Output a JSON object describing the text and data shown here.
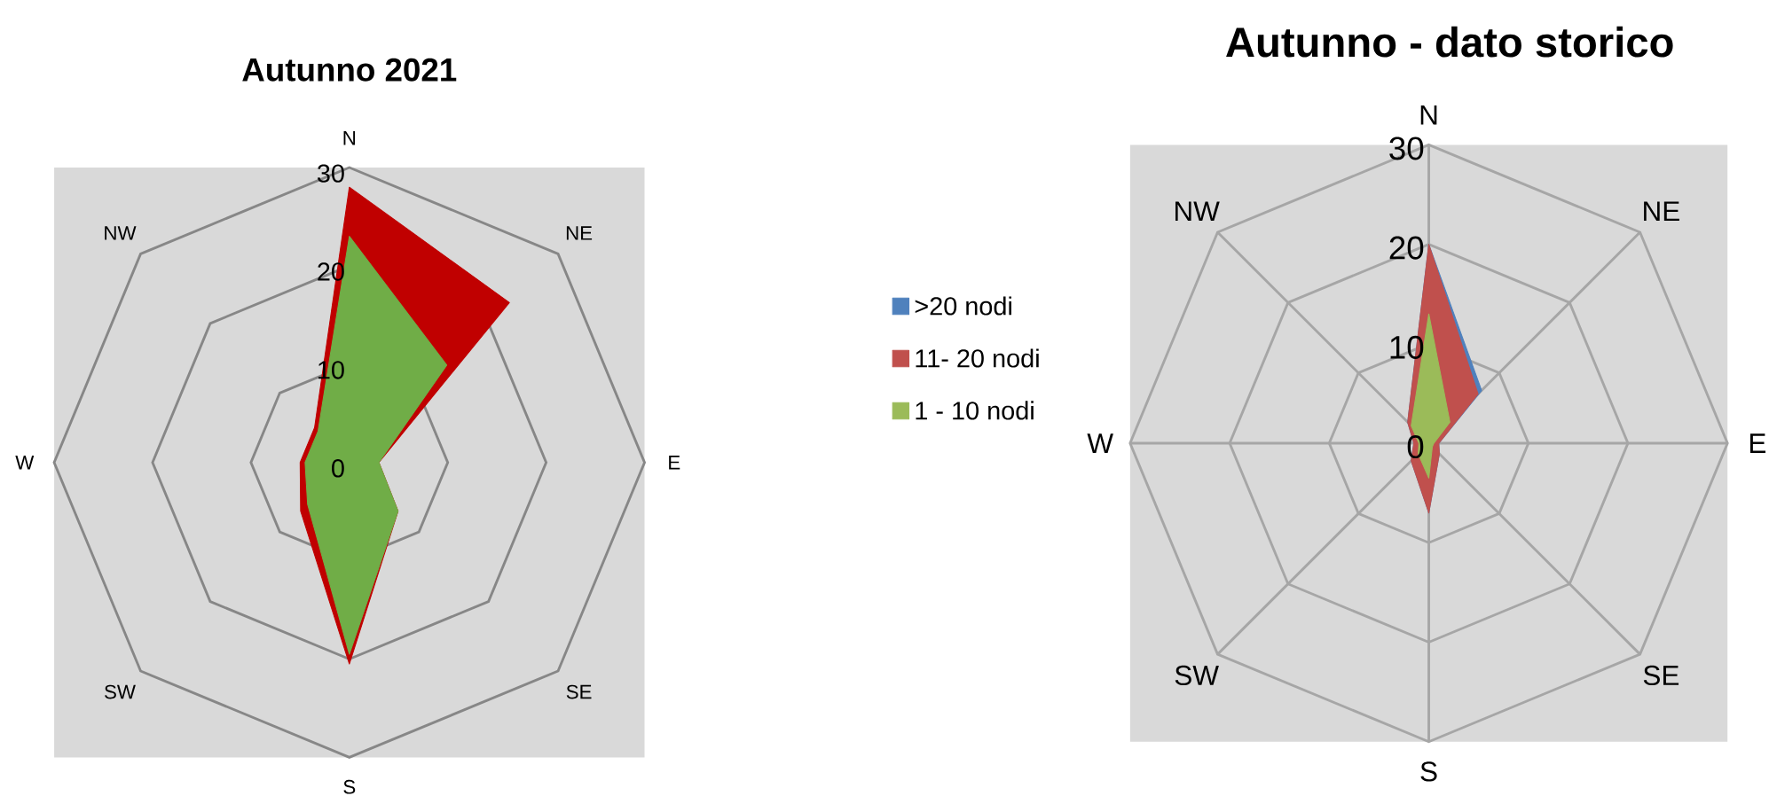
{
  "chart_data": [
    {
      "type": "radar",
      "title": "Autunno 2021",
      "categories": [
        "N",
        "NE",
        "E",
        "SE",
        "S",
        "SW",
        "W",
        "NW"
      ],
      "ylim": [
        0,
        30
      ],
      "yticks": [
        0,
        10,
        20,
        30
      ],
      "grid": "y",
      "series": [
        {
          "color": "#c00000",
          "values": [
            28,
            23,
            3,
            7,
            20.5,
            7,
            5,
            5
          ]
        },
        {
          "color": "#70ad47",
          "values": [
            23,
            14,
            3,
            7,
            19.5,
            6,
            4.5,
            4.5
          ]
        }
      ]
    },
    {
      "type": "radar",
      "title": "Autunno - dato storico",
      "categories": [
        "N",
        "NE",
        "E",
        "SE",
        "S",
        "SW",
        "W",
        "NW"
      ],
      "ylim": [
        0,
        30
      ],
      "yticks": [
        0,
        10,
        20,
        30
      ],
      "grid": true,
      "legend": "left",
      "series": [
        {
          "name": ">20 nodi",
          "color": "#4f81bd",
          "values": [
            20,
            7.5,
            1,
            1.5,
            7,
            2.5,
            1.5,
            3
          ]
        },
        {
          "name": "11- 20 nodi",
          "color": "#c0504d",
          "values": [
            20,
            7,
            1,
            1.5,
            7,
            2.5,
            1.5,
            3
          ]
        },
        {
          "name": "1 - 10 nodi",
          "color": "#9bbb59",
          "values": [
            13,
            3,
            0.5,
            0.5,
            3.5,
            1.5,
            1,
            2.5
          ]
        }
      ]
    }
  ]
}
